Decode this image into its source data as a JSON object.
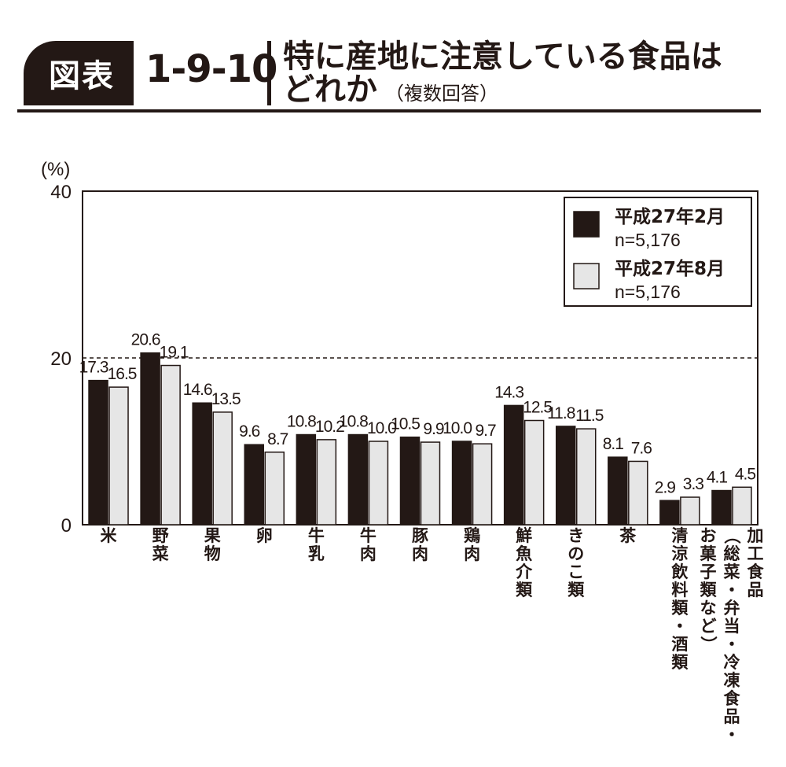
{
  "header": {
    "fig_label": "図表",
    "fig_number": "1-9-10",
    "title_line1": "特に産地に注意している食品は",
    "title_line2": "どれか",
    "title_note": "（複数回答）"
  },
  "chart_data": {
    "type": "bar",
    "title": "特に産地に注意している食品はどれか",
    "ylabel": "(%)",
    "ylim": [
      0,
      40
    ],
    "yticks": [
      0,
      20,
      40
    ],
    "reference_line": 20,
    "legend_position": "top-right",
    "categories": [
      "米",
      "野菜",
      "果物",
      "卵",
      "牛乳",
      "牛肉",
      "豚肉",
      "鶏肉",
      "鮮魚介類",
      "きのこ類",
      "茶",
      "清涼飲料類・酒類",
      "加工食品（総菜・弁当・冷凍食品・お菓子類など）"
    ],
    "category_label_columns": [
      [
        "米"
      ],
      [
        "野菜"
      ],
      [
        "果物"
      ],
      [
        "卵"
      ],
      [
        "牛乳"
      ],
      [
        "牛肉"
      ],
      [
        "豚肉"
      ],
      [
        "鶏肉"
      ],
      [
        "鮮魚介類"
      ],
      [
        "きのこ類"
      ],
      [
        "茶"
      ],
      [
        "清涼飲料類・酒類"
      ],
      [
        "加工食品",
        "（総菜・弁当・冷凍食品・",
        "お菓子類など）"
      ]
    ],
    "series": [
      {
        "name": "平成27年2月",
        "sample": "n=5,176",
        "color": "#231815",
        "values": [
          17.3,
          20.6,
          14.6,
          9.6,
          10.8,
          10.8,
          10.5,
          10.0,
          14.3,
          11.8,
          8.1,
          2.9,
          4.1
        ],
        "labels": [
          "17.3",
          "20.6",
          "14.6",
          "9.6",
          "10.8",
          "10.8",
          "10.5",
          "10.0",
          "14.3",
          "11.8",
          "8.1",
          "2.9",
          "4.1"
        ]
      },
      {
        "name": "平成27年8月",
        "sample": "n=5,176",
        "color": "#e6e6e6",
        "values": [
          16.5,
          19.1,
          13.5,
          8.7,
          10.2,
          10.0,
          9.9,
          9.7,
          12.5,
          11.5,
          7.6,
          3.3,
          4.5
        ],
        "labels": [
          "16.5",
          "19.1",
          "13.5",
          "8.7",
          "10.2",
          "10.0",
          "9.9",
          "9.7",
          "12.5",
          "11.5",
          "7.6",
          "3.3",
          "4.5"
        ]
      }
    ]
  }
}
